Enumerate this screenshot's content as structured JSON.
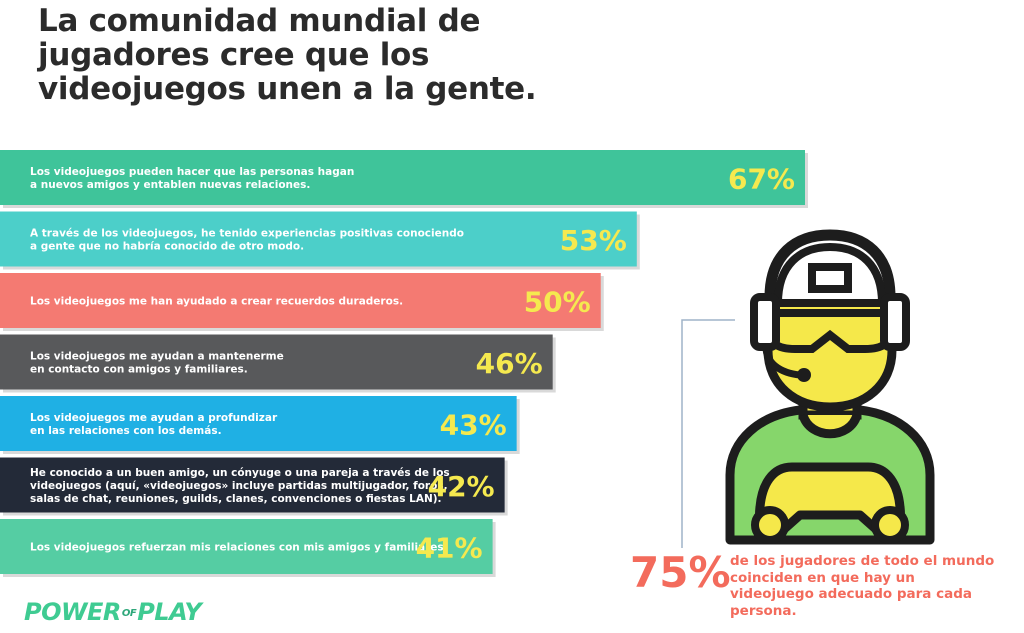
{
  "title": "La comunidad mundial de jugadores cree que los videojuegos unen a la gente.",
  "chart_data": {
    "type": "bar",
    "orientation": "horizontal",
    "title": "La comunidad mundial de jugadores cree que los videojuegos unen a la gente.",
    "categories": [
      "Los videojuegos pueden hacer que las personas hagan a nuevos amigos y entablen nuevas relaciones.",
      "A través de los videojuegos, he tenido experiencias positivas conociendo a gente que no habría conocido de otro modo.",
      "Los videojuegos me han ayudado a crear recuerdos duraderos.",
      "Los videojuegos me ayudan a mantenerme en contacto con amigos y familiares.",
      "Los videojuegos me ayudan a profundizar en las relaciones con los demás.",
      "He conocido a un buen amigo, un cónyuge o una pareja a través de los videojuegos (aquí, «videojuegos» incluye partidas multijugador, foros, salas de chat, reuniones, guilds, clanes, convenciones o fiestas LAN).",
      "Los videojuegos refuerzan mis relaciones con mis amigos y familiares."
    ],
    "values": [
      67,
      53,
      50,
      46,
      43,
      42,
      41
    ],
    "value_labels": [
      "67%",
      "53%",
      "50%",
      "46%",
      "43%",
      "42%",
      "41%"
    ],
    "bar_colors": [
      "#3fc49a",
      "#4ccfc9",
      "#f47a72",
      "#58595b",
      "#1fb0e4",
      "#232a38",
      "#55cda3"
    ],
    "label_lines": [
      [
        "Los videojuegos pueden hacer que las personas hagan",
        "a nuevos amigos y entablen nuevas relaciones."
      ],
      [
        "A través de los videojuegos, he tenido experiencias positivas conociendo",
        "a gente que no habría conocido de otro modo."
      ],
      [
        "Los videojuegos me han ayudado a crear recuerdos duraderos."
      ],
      [
        "Los videojuegos me ayudan a mantenerme",
        "en contacto con amigos y familiares."
      ],
      [
        "Los videojuegos me ayudan a profundizar",
        "en las relaciones con los demás."
      ],
      [
        "He conocido a un buen amigo, un cónyuge o una pareja a través de los",
        "videojuegos (aquí, «videojuegos» incluye partidas multijugador, foros,",
        "salas de chat, reuniones, guilds, clanes, convenciones o fiestas LAN)."
      ],
      [
        "Los videojuegos refuerzan mis relaciones con mis amigos y familiares."
      ]
    ],
    "value_color": "#f5e94f",
    "label_color": "#ffffff",
    "grid": false,
    "legend": "none"
  },
  "callout": {
    "value": "75%",
    "text": "de los jugadores de todo el mundo coinciden en que hay un videojuego adecuado para cada persona."
  },
  "logo": {
    "left": "POWER",
    "mid": "OF",
    "right": "PLAY",
    "color": "#3fcb92"
  },
  "icon": "gamer-with-headset-and-controller-icon"
}
